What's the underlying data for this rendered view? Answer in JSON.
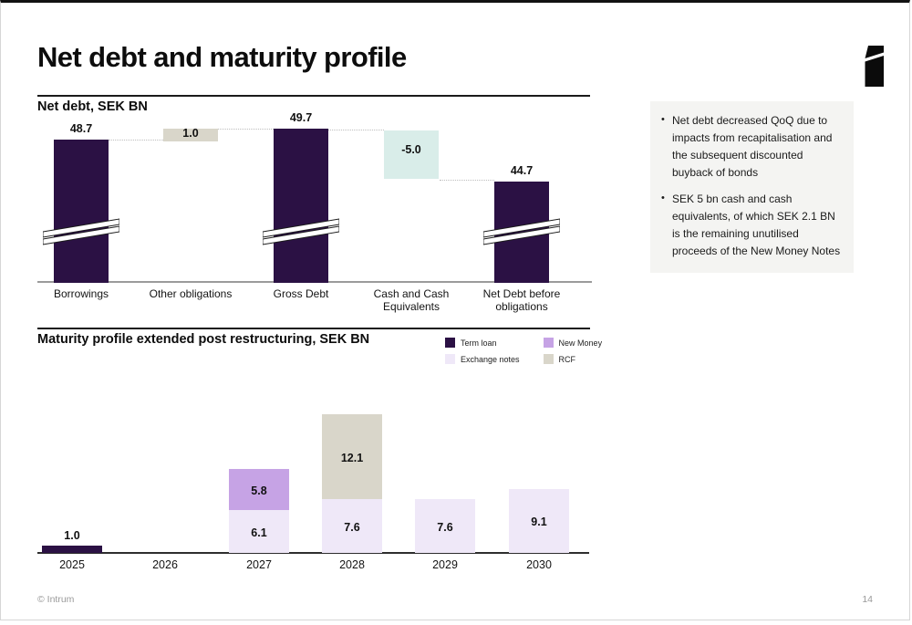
{
  "slide": {
    "title": "Net debt and maturity profile",
    "footer_left": "© Intrum",
    "page_number": "14"
  },
  "net_debt_chart": {
    "title": "Net debt, SEK BN"
  },
  "maturity_chart": {
    "title": "Maturity profile extended post restructuring, SEK BN",
    "legend": [
      {
        "label": "Term loan",
        "color": "term_loan"
      },
      {
        "label": "Exchange notes",
        "color": "exchange_notes"
      },
      {
        "label": "New Money",
        "color": "new_money"
      },
      {
        "label": "RCF",
        "color": "rcf"
      }
    ]
  },
  "sidebar": {
    "bullets": [
      "Net debt decreased QoQ due to impacts from recapitalisation and the subsequent discounted buyback of bonds",
      "SEK 5 bn cash and cash equivalents, of which SEK 2.1 BN is the remaining unutilised proceeds of the New Money Notes"
    ]
  },
  "colors": {
    "term_loan": "#2B1144",
    "new_money": "#C6A3E5",
    "exchange_notes": "#EFE8F8",
    "rcf": "#D9D6CA",
    "cash": "#D9EDE9",
    "panel_bg": "#F4F4F2"
  },
  "chart_data": [
    {
      "type": "bar",
      "subtype": "waterfall",
      "title": "Net debt, SEK BN",
      "categories": [
        "Borrowings",
        "Other obligations",
        "Gross Debt",
        "Cash and Cash Equivalents",
        "Net Debt before obligations"
      ],
      "values": [
        48.7,
        1.0,
        49.7,
        -5.0,
        44.7
      ],
      "bar_colors": [
        "term_loan",
        "rcf",
        "term_loan",
        "cash",
        "term_loan"
      ],
      "label_position": [
        "above",
        "inside",
        "above",
        "inside",
        "above"
      ],
      "axis_break_bars": [
        0,
        2,
        4
      ],
      "grid": false,
      "notes": "broken-axis waterfall; dotted connectors between steps"
    },
    {
      "type": "bar",
      "subtype": "stacked",
      "title": "Maturity profile extended post restructuring, SEK BN",
      "categories": [
        "2025",
        "2026",
        "2027",
        "2028",
        "2029",
        "2030"
      ],
      "series": [
        {
          "name": "Term loan",
          "color": "term_loan",
          "values": [
            1.0,
            null,
            null,
            null,
            null,
            null
          ]
        },
        {
          "name": "Exchange notes",
          "color": "exchange_notes",
          "values": [
            null,
            null,
            6.1,
            7.6,
            7.6,
            9.1
          ]
        },
        {
          "name": "New Money",
          "color": "new_money",
          "values": [
            null,
            null,
            5.8,
            null,
            null,
            null
          ]
        },
        {
          "name": "RCF",
          "color": "rcf",
          "values": [
            null,
            null,
            null,
            12.1,
            null,
            null
          ]
        }
      ],
      "ylim": [
        0,
        22
      ],
      "grid": false,
      "legend_position": "top-right"
    }
  ]
}
